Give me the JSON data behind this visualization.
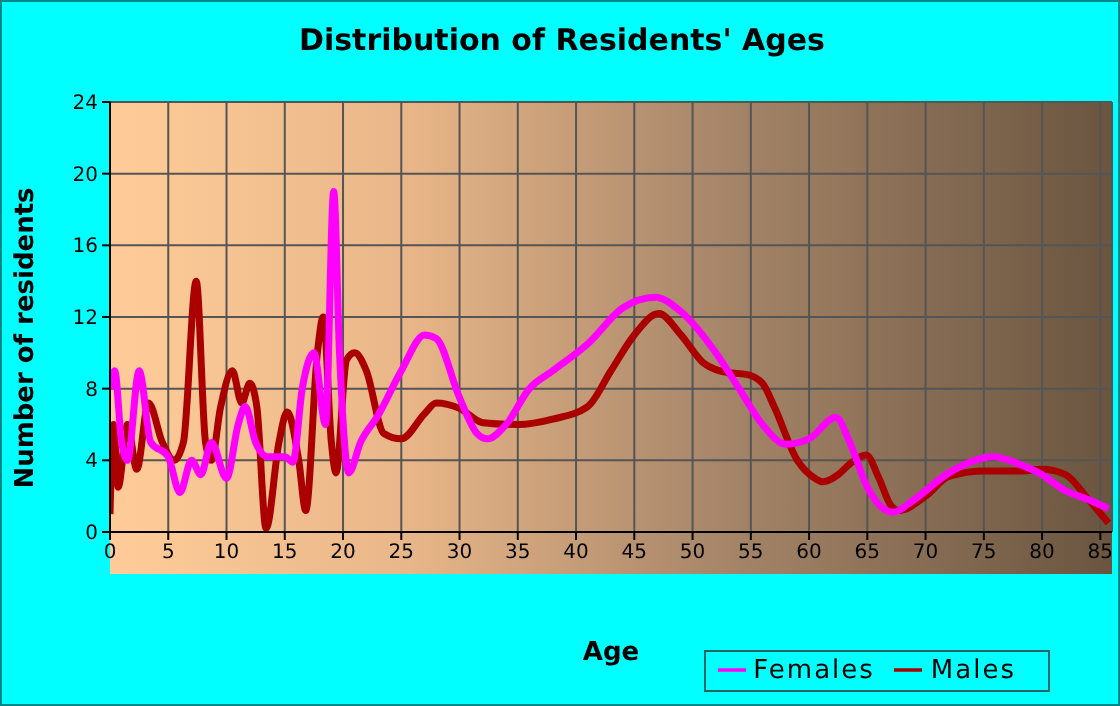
{
  "chart_data": {
    "type": "line",
    "title": "Distribution of Residents' Ages",
    "xlabel": "Age",
    "ylabel": "Number of residents",
    "xlim": [
      0,
      86
    ],
    "xticks": [
      0,
      5,
      10,
      15,
      20,
      25,
      30,
      35,
      40,
      45,
      50,
      55,
      60,
      65,
      70,
      75,
      80,
      85
    ],
    "ylim": [
      0,
      24
    ],
    "yticks": [
      0,
      4,
      8,
      12,
      16,
      20,
      24
    ],
    "grid": true,
    "legend": "bottom right",
    "marker": "none",
    "line_style": "solid",
    "series": [
      {
        "name": "Males",
        "color": "#aa0000",
        "x": [
          0,
          0.3,
          0.7,
          1.5,
          2.3,
          3.3,
          4.5,
          5.5,
          6.3,
          7.4,
          8.2,
          8.7,
          9.5,
          10.5,
          11.3,
          12,
          12.6,
          13.4,
          14.5,
          15.2,
          16.2,
          16.8,
          17.8,
          18.3,
          19,
          19.4,
          20.3,
          21,
          22,
          23.5,
          25,
          27,
          28,
          30,
          32,
          35,
          38,
          41,
          43,
          45,
          47.1,
          49,
          51,
          53,
          54.6,
          56,
          57,
          59,
          60.5,
          61.2,
          62.5,
          63.5,
          64.9,
          66,
          67,
          67.7,
          70,
          72,
          75,
          78,
          80,
          82,
          84,
          85.7
        ],
        "values": [
          1,
          6,
          2.5,
          6,
          3.5,
          7.2,
          5,
          4,
          5,
          14,
          5,
          4,
          7,
          9,
          7.2,
          8.3,
          7,
          0.2,
          5,
          6.7,
          4,
          1.2,
          10,
          12,
          5,
          3.3,
          9.6,
          10,
          9,
          5.5,
          5.2,
          6.6,
          7.2,
          6.9,
          6.1,
          6,
          6.3,
          7,
          9,
          11,
          12.2,
          11,
          9.4,
          8.9,
          8.8,
          8.3,
          7,
          4,
          3,
          2.8,
          3.2,
          3.8,
          4.3,
          3,
          1.5,
          1.2,
          2,
          3.1,
          3.4,
          3.4,
          3.5,
          3.2,
          1.8,
          0.5
        ]
      },
      {
        "name": "Females",
        "color": "#ff00ff",
        "x": [
          0,
          0.4,
          1,
          1.5,
          2.5,
          3.5,
          5,
          6,
          7,
          7.8,
          8.7,
          10,
          11,
          11.6,
          12.5,
          13.5,
          15,
          15.7,
          16.5,
          17.5,
          18.5,
          19.2,
          19.7,
          20.5,
          21.5,
          23,
          25,
          27,
          28,
          30,
          31.5,
          32.4,
          34,
          36,
          38,
          41,
          44,
          46.8,
          49,
          52,
          54,
          56,
          58,
          60,
          62.3,
          63.5,
          65,
          67.2,
          69,
          72,
          75.8,
          78,
          80,
          82,
          84,
          85.7
        ],
        "values": [
          8,
          9,
          5,
          4,
          9,
          5,
          4.2,
          2.2,
          4,
          3.2,
          5,
          3,
          6,
          7,
          5,
          4.2,
          4.2,
          3.9,
          8,
          10,
          6,
          19,
          10,
          3.3,
          5,
          6.5,
          9,
          11,
          10.8,
          7.5,
          5.5,
          5.2,
          6,
          8,
          9,
          10.5,
          12.5,
          13.1,
          12.3,
          10,
          8,
          6,
          4.9,
          5.2,
          6.4,
          5,
          2.5,
          1.1,
          1.8,
          3.3,
          4.2,
          3.8,
          3.2,
          2.3,
          1.8,
          1.3
        ]
      }
    ]
  }
}
